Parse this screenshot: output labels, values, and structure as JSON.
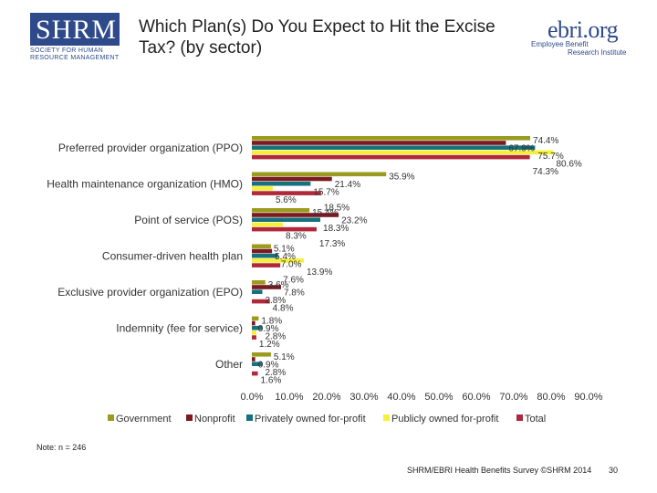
{
  "header": {
    "title": "Which Plan(s) Do You Expect to Hit the Excise Tax? (by sector)",
    "shrm_logo": {
      "letters": "SHRM",
      "tagline": "SOCIETY FOR HUMAN RESOURCE MANAGEMENT"
    },
    "ebri_logo": {
      "word": "ebri.org",
      "line1": "Employee Benefit",
      "line2": "Research Institute"
    }
  },
  "colors": {
    "Government": "#9a9b1f",
    "Nonprofit": "#7b1a21",
    "Privately owned for-profit": "#17707e",
    "Publicly owned for-profit": "#f5f03a",
    "Total": "#b1283b"
  },
  "chart_data": {
    "type": "bar",
    "orientation": "horizontal",
    "categories": [
      "Preferred provider organization (PPO)",
      "Health maintenance organization (HMO)",
      "Point of service (POS)",
      "Consumer-driven health plan",
      "Exclusive provider organization (EPO)",
      "Indemnity (fee for service)",
      "Other"
    ],
    "series": [
      {
        "name": "Government",
        "values": [
          74.4,
          35.9,
          15.4,
          5.1,
          3.6,
          1.8,
          5.1
        ],
        "labels": [
          "74.4%",
          "35.9%",
          "15.4%",
          "5.1%",
          "3.6%",
          "1.8%",
          "5.1%"
        ]
      },
      {
        "name": "Nonprofit",
        "values": [
          67.9,
          21.4,
          23.2,
          5.4,
          7.8,
          0.9,
          0.9
        ],
        "labels": [
          "67.9%",
          "21.4%",
          "23.2%",
          "5.4%",
          "7.8%",
          "0.9%",
          "0.9%"
        ]
      },
      {
        "name": "Privately owned for-profit",
        "values": [
          75.7,
          15.7,
          18.3,
          7.0,
          2.8,
          2.8,
          2.8
        ],
        "labels": [
          "75.7%",
          "15.7%",
          "18.3%",
          "7.0%",
          "2.8%",
          "2.8%",
          "2.8%"
        ]
      },
      {
        "name": "Publicly owned for-profit",
        "values": [
          80.6,
          5.6,
          8.3,
          13.9,
          0,
          1.2,
          0
        ],
        "labels": [
          "80.6%",
          "5.6%",
          "8.3%",
          "13.9%",
          "",
          "1.2%",
          ""
        ]
      },
      {
        "name": "Total",
        "values": [
          74.3,
          18.5,
          17.3,
          7.6,
          4.8,
          1.2,
          1.6
        ],
        "labels": [
          "74.3%",
          "18.5%",
          "17.3%",
          "7.6%",
          "4.8%",
          "",
          "1.6%"
        ]
      }
    ],
    "xlim": [
      0,
      90
    ],
    "x_ticks": [
      "0.0%",
      "10.0%",
      "20.0%",
      "30.0%",
      "40.0%",
      "50.0%",
      "60.0%",
      "70.0%",
      "80.0%",
      "90.0%"
    ],
    "legend_position": "bottom",
    "grid": false
  },
  "footer": {
    "note": "Note: n = 246",
    "credit": "SHRM/EBRI Health Benefits Survey ©SHRM 2014",
    "page": "30"
  }
}
